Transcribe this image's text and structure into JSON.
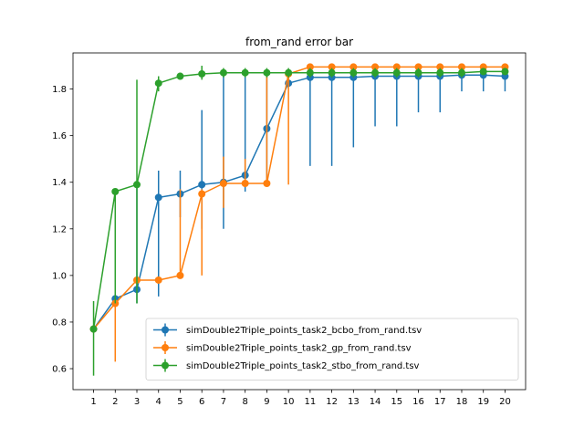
{
  "chart_data": {
    "type": "line",
    "title": "from_rand error bar",
    "xlabel": "",
    "ylabel": "",
    "x": [
      1,
      2,
      3,
      4,
      5,
      6,
      7,
      8,
      9,
      10,
      11,
      12,
      13,
      14,
      15,
      16,
      17,
      18,
      19,
      20
    ],
    "xlim": [
      0.05,
      20.95
    ],
    "ylim": [
      0.51,
      1.955
    ],
    "yticks": [
      0.6,
      0.8,
      1.0,
      1.2,
      1.4,
      1.6,
      1.8
    ],
    "ytick_labels": [
      "0.6",
      "0.8",
      "1.0",
      "1.2",
      "1.4",
      "1.6",
      "1.8"
    ],
    "grid": false,
    "legend_position": "lower right",
    "series": [
      {
        "name": "simDouble2Triple_points_task2_bcbo_from_rand.tsv",
        "color": "#1f77b4",
        "values": [
          0.77,
          0.9,
          0.94,
          1.335,
          1.35,
          1.39,
          1.4,
          1.43,
          1.63,
          1.825,
          1.85,
          1.85,
          1.85,
          1.855,
          1.855,
          1.855,
          1.855,
          1.86,
          1.86,
          1.855
        ],
        "err_low": [
          0.77,
          0.9,
          0.88,
          0.91,
          1.25,
          1.2,
          1.2,
          1.36,
          1.4,
          1.82,
          1.47,
          1.47,
          1.55,
          1.64,
          1.64,
          1.7,
          1.7,
          1.79,
          1.79,
          1.79
        ],
        "err_high": [
          0.77,
          0.9,
          1.39,
          1.45,
          1.45,
          1.71,
          1.87,
          1.88,
          1.87,
          1.88,
          1.87,
          1.87,
          1.87,
          1.87,
          1.87,
          1.87,
          1.87,
          1.87,
          1.87,
          1.87
        ]
      },
      {
        "name": "simDouble2Triple_points_task2_gp_from_rand.tsv",
        "color": "#ff7f0e",
        "values": [
          0.77,
          0.88,
          0.98,
          0.98,
          1.0,
          1.35,
          1.395,
          1.395,
          1.395,
          1.865,
          1.895,
          1.895,
          1.895,
          1.895,
          1.895,
          1.895,
          1.895,
          1.895,
          1.895,
          1.895
        ],
        "err_low": [
          0.77,
          0.63,
          0.98,
          0.98,
          1.0,
          1.0,
          1.29,
          1.39,
          1.39,
          1.39,
          1.89,
          1.89,
          1.89,
          1.89,
          1.89,
          1.89,
          1.89,
          1.89,
          1.89,
          1.89
        ],
        "err_high": [
          0.77,
          0.88,
          0.98,
          0.98,
          1.37,
          1.37,
          1.51,
          1.5,
          1.87,
          1.87,
          1.9,
          1.9,
          1.9,
          1.9,
          1.9,
          1.9,
          1.9,
          1.9,
          1.9,
          1.9
        ]
      },
      {
        "name": "simDouble2Triple_points_task2_stbo_from_rand.tsv",
        "color": "#2ca02c",
        "values": [
          0.77,
          1.36,
          1.39,
          1.825,
          1.855,
          1.865,
          1.87,
          1.87,
          1.87,
          1.87,
          1.87,
          1.87,
          1.87,
          1.87,
          1.87,
          1.87,
          1.87,
          1.87,
          1.875,
          1.875
        ],
        "err_low": [
          0.57,
          0.88,
          0.88,
          1.79,
          1.84,
          1.84,
          1.85,
          1.85,
          1.85,
          1.85,
          1.85,
          1.85,
          1.85,
          1.85,
          1.85,
          1.85,
          1.85,
          1.85,
          1.86,
          1.86
        ],
        "err_high": [
          0.89,
          1.37,
          1.84,
          1.855,
          1.87,
          1.9,
          1.89,
          1.89,
          1.89,
          1.89,
          1.89,
          1.89,
          1.89,
          1.89,
          1.89,
          1.89,
          1.89,
          1.89,
          1.89,
          1.89
        ]
      }
    ]
  }
}
